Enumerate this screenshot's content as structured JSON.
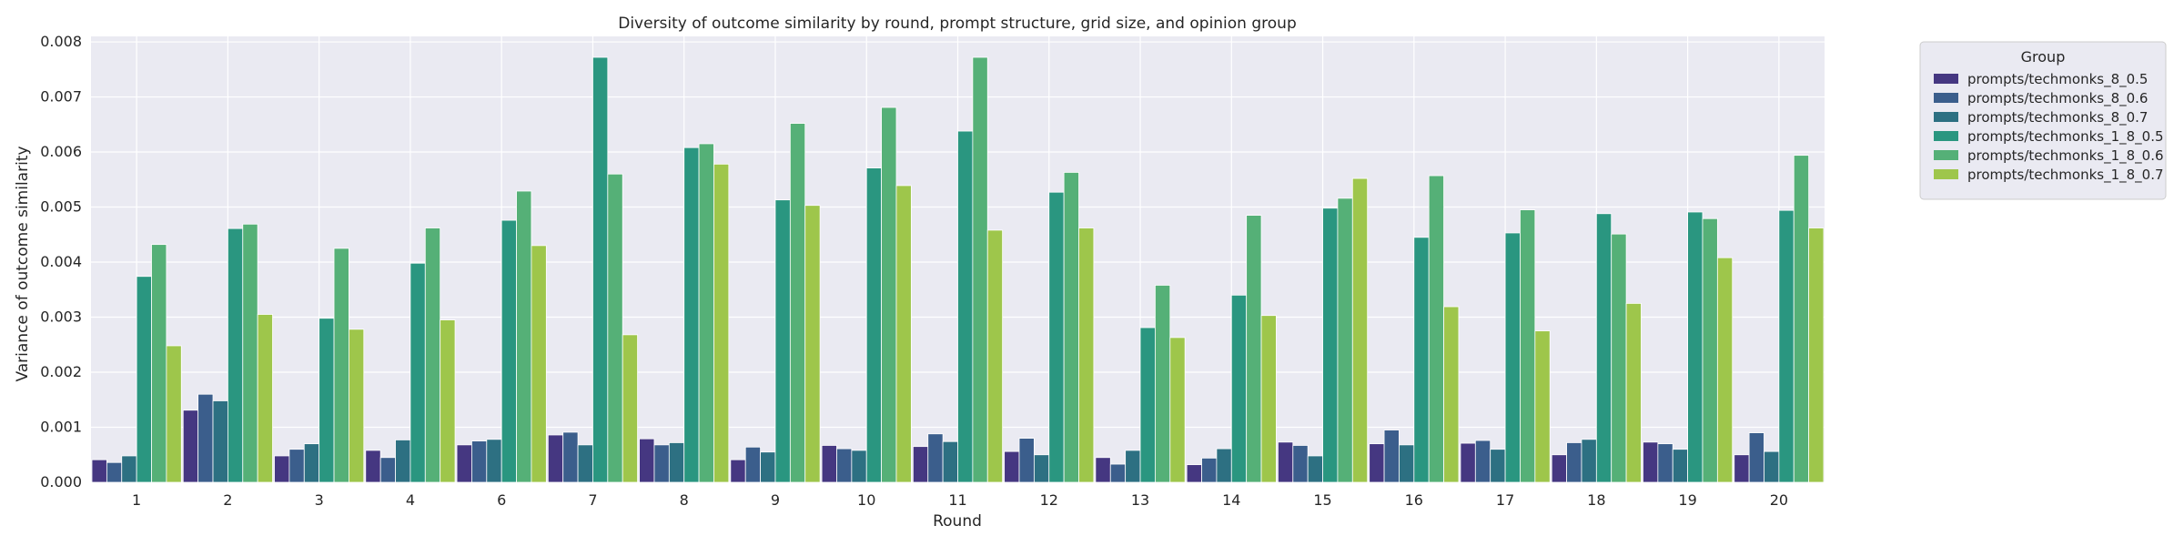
{
  "chart_data": {
    "type": "bar",
    "title": "Diversity of outcome similarity by round, prompt structure, grid size, and opinion group",
    "xlabel": "Round",
    "ylabel": "Variance of outcome similarity",
    "ylim": [
      0,
      0.0081
    ],
    "yticks": [
      "0.000",
      "0.001",
      "0.002",
      "0.003",
      "0.004",
      "0.005",
      "0.006",
      "0.007",
      "0.008"
    ],
    "grid": true,
    "legend_title": "Group",
    "legend_position": "outside-right-top",
    "categories": [
      "1",
      "2",
      "3",
      "4",
      "6",
      "7",
      "8",
      "9",
      "10",
      "11",
      "12",
      "13",
      "14",
      "15",
      "16",
      "17",
      "18",
      "19",
      "20"
    ],
    "series": [
      {
        "name": "prompts/techmonks_8_0.5",
        "color": "#453781",
        "values": [
          0.00041,
          0.00131,
          0.00048,
          0.00058,
          0.00068,
          0.00086,
          0.00079,
          0.00041,
          0.00067,
          0.00065,
          0.00056,
          0.00045,
          0.00032,
          0.00073,
          0.0007,
          0.00071,
          0.0005,
          0.00073,
          0.0005
        ]
      },
      {
        "name": "prompts/techmonks_8_0.6",
        "color": "#3b5e8c",
        "values": [
          0.00036,
          0.0016,
          0.0006,
          0.00045,
          0.00075,
          0.00091,
          0.00068,
          0.00064,
          0.00061,
          0.00088,
          0.0008,
          0.00033,
          0.00044,
          0.00067,
          0.00095,
          0.00076,
          0.00072,
          0.0007,
          0.0009
        ]
      },
      {
        "name": "prompts/techmonks_8_0.7",
        "color": "#2d7082",
        "values": [
          0.00048,
          0.00148,
          0.0007,
          0.00077,
          0.00078,
          0.00068,
          0.00072,
          0.00055,
          0.00058,
          0.00074,
          0.0005,
          0.00058,
          0.00061,
          0.00048,
          0.00068,
          0.0006,
          0.00078,
          0.0006,
          0.00056
        ]
      },
      {
        "name": "prompts/techmonks_1_8_0.5",
        "color": "#2a9680",
        "values": [
          0.00374,
          0.00461,
          0.00298,
          0.00398,
          0.00476,
          0.00772,
          0.00608,
          0.00513,
          0.00571,
          0.00638,
          0.00527,
          0.00281,
          0.0034,
          0.00498,
          0.00445,
          0.00453,
          0.00488,
          0.00491,
          0.00494
        ]
      },
      {
        "name": "prompts/techmonks_1_8_0.6",
        "color": "#55b077",
        "values": [
          0.00432,
          0.00469,
          0.00425,
          0.00462,
          0.00529,
          0.0056,
          0.00615,
          0.00652,
          0.00681,
          0.00772,
          0.00563,
          0.00358,
          0.00485,
          0.00516,
          0.00557,
          0.00495,
          0.00451,
          0.00479,
          0.00594
        ]
      },
      {
        "name": "prompts/techmonks_1_8_0.7",
        "color": "#9ec64b",
        "values": [
          0.00248,
          0.00305,
          0.00278,
          0.00295,
          0.0043,
          0.00268,
          0.00578,
          0.00503,
          0.00539,
          0.00458,
          0.00462,
          0.00263,
          0.00303,
          0.00552,
          0.00319,
          0.00275,
          0.00325,
          0.00408,
          0.00462
        ]
      }
    ]
  }
}
